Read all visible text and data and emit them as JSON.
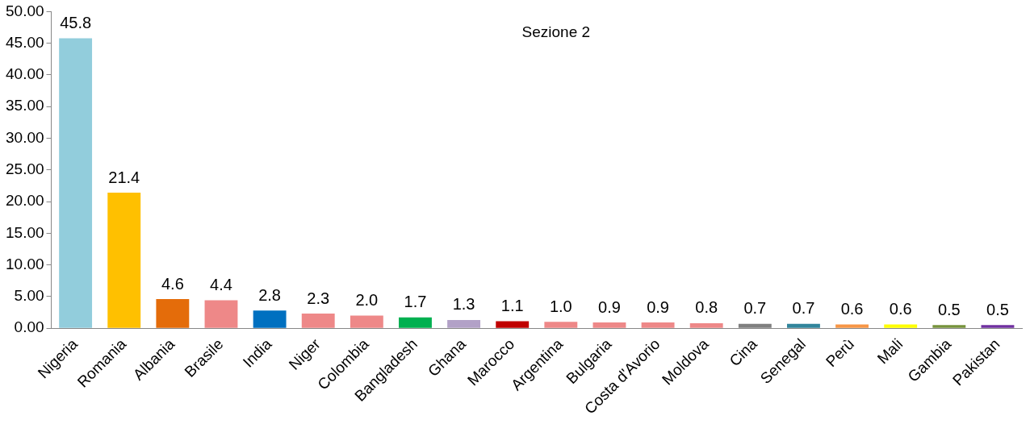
{
  "chart_data": {
    "type": "bar",
    "title": "Sezione 2",
    "categories": [
      "Nigeria",
      "Romania",
      "Albania",
      "Brasile",
      "India",
      "Niger",
      "Colombia",
      "Bangladesh",
      "Ghana",
      "Marocco",
      "Argentina",
      "Bulgaria",
      "Costa d'Avorio",
      "Moldova",
      "Cina",
      "Senegal",
      "Perù",
      "Mali",
      "Gambia",
      "Pakistan"
    ],
    "values": [
      45.8,
      21.4,
      4.6,
      4.4,
      2.8,
      2.3,
      2.0,
      1.7,
      1.3,
      1.1,
      1.0,
      0.9,
      0.9,
      0.8,
      0.7,
      0.7,
      0.6,
      0.6,
      0.5,
      0.5
    ],
    "value_labels": [
      "45.8",
      "21.4",
      "4.6",
      "4.4",
      "2.8",
      "2.3",
      "2.0",
      "1.7",
      "1.3",
      "1.1",
      "1.0",
      "0.9",
      "0.9",
      "0.8",
      "0.7",
      "0.7",
      "0.6",
      "0.6",
      "0.5",
      "0.5"
    ],
    "colors": [
      "#92cddc",
      "#ffc000",
      "#e46c0a",
      "#ee8888",
      "#0070c0",
      "#ee8888",
      "#ee8888",
      "#00b050",
      "#b2a1c7",
      "#c00000",
      "#ee8888",
      "#ee8888",
      "#ee8888",
      "#ee8888",
      "#808080",
      "#31859c",
      "#f79646",
      "#ffff00",
      "#77933c",
      "#7030a0"
    ],
    "ylim": [
      0,
      50
    ],
    "yticks": [
      {
        "value": 0,
        "label": "0.00"
      },
      {
        "value": 5,
        "label": "5.00"
      },
      {
        "value": 10,
        "label": "10.00"
      },
      {
        "value": 15,
        "label": "15.00"
      },
      {
        "value": 20,
        "label": "20.00"
      },
      {
        "value": 25,
        "label": "25.00"
      },
      {
        "value": 30,
        "label": "30.00"
      },
      {
        "value": 35,
        "label": "35.00"
      },
      {
        "value": 40,
        "label": "40.00"
      },
      {
        "value": 45,
        "label": "45.00"
      },
      {
        "value": 50,
        "label": "50.00"
      }
    ],
    "grid": false,
    "legend": false
  }
}
